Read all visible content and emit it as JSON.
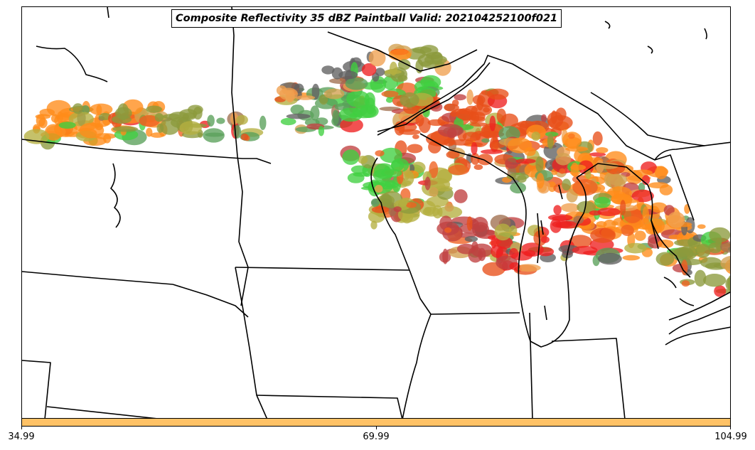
{
  "title": "Composite Reflectivity 35 dBZ Paintball Valid: 202104252100f021",
  "colorbar": {
    "color": "#ffc266",
    "ticks": [
      "34.99",
      "69.99",
      "104.99"
    ]
  },
  "member_colors": [
    "#ff8c1a",
    "#e8501a",
    "#f0a050",
    "#ee2020",
    "#c04040",
    "#a07050",
    "#8c9a3c",
    "#b5b040",
    "#40d040",
    "#5aa05a",
    "#606060",
    "#d2a050",
    "#f06020"
  ]
}
